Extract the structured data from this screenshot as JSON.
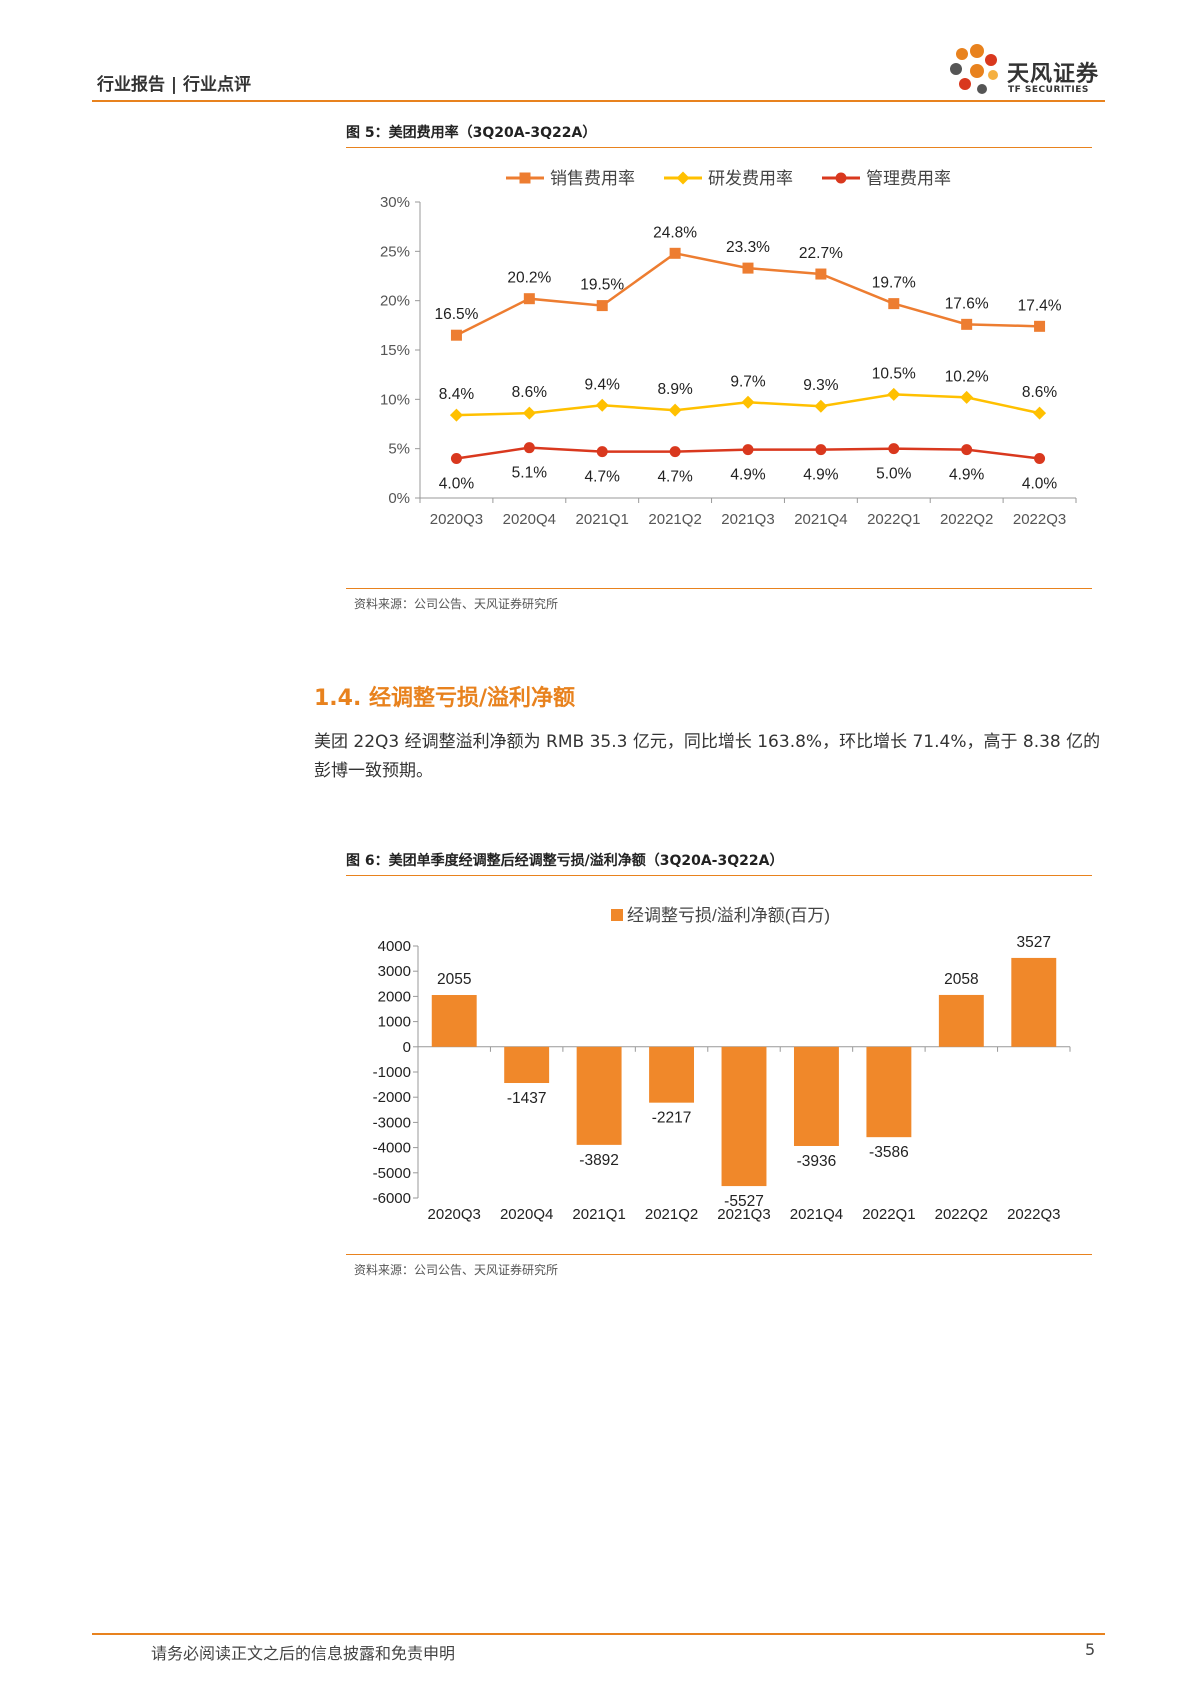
{
  "header": {
    "left_text": "行业报告 | 行业点评",
    "brand_name": "天风证券",
    "brand_sub": "TF SECURITIES",
    "logo_icon": "flower-logo-icon"
  },
  "figure5": {
    "title": "图 5：美团费用率（3Q20A-3Q22A）",
    "source": "资料来源：公司公告、天风证券研究所",
    "chart_data": {
      "type": "line",
      "categories": [
        "2020Q3",
        "2020Q4",
        "2021Q1",
        "2021Q2",
        "2021Q3",
        "2021Q4",
        "2022Q1",
        "2022Q2",
        "2022Q3"
      ],
      "series": [
        {
          "name": "销售费用率",
          "marker": "square",
          "color": "#ED7D31",
          "values": [
            16.5,
            20.2,
            19.5,
            24.8,
            23.3,
            22.7,
            19.7,
            17.6,
            17.4
          ],
          "labels": [
            "16.5%",
            "20.2%",
            "19.5%",
            "24.8%",
            "23.3%",
            "22.7%",
            "19.7%",
            "17.6%",
            "17.4%"
          ]
        },
        {
          "name": "研发费用率",
          "marker": "diamond",
          "color": "#FFC000",
          "values": [
            8.4,
            8.6,
            9.4,
            8.9,
            9.7,
            9.3,
            10.5,
            10.2,
            8.6
          ],
          "labels": [
            "8.4%",
            "8.6%",
            "9.4%",
            "8.9%",
            "9.7%",
            "9.3%",
            "10.5%",
            "10.2%",
            "8.6%"
          ]
        },
        {
          "name": "管理费用率",
          "marker": "circle",
          "color": "#D9381E",
          "values": [
            4.0,
            5.1,
            4.7,
            4.7,
            4.9,
            4.9,
            5.0,
            4.9,
            4.0
          ],
          "labels": [
            "4.0%",
            "5.1%",
            "4.7%",
            "4.7%",
            "4.9%",
            "4.9%",
            "5.0%",
            "4.9%",
            "4.0%"
          ]
        }
      ],
      "ylim": [
        0,
        30
      ],
      "yticks": [
        "0%",
        "5%",
        "10%",
        "15%",
        "20%",
        "25%",
        "30%"
      ],
      "legend_position": "top"
    }
  },
  "section": {
    "heading": "1.4. 经调整亏损/溢利净额",
    "paragraph": "美团 22Q3 经调整溢利净额为 RMB 35.3 亿元，同比增长 163.8%，环比增长 71.4%，高于 8.38 亿的彭博一致预期。"
  },
  "figure6": {
    "title": "图 6：美团单季度经调整后经调整亏损/溢利净额（3Q20A-3Q22A）",
    "source": "资料来源：公司公告、天风证券研究所",
    "chart_data": {
      "type": "bar",
      "categories": [
        "2020Q3",
        "2020Q4",
        "2021Q1",
        "2021Q2",
        "2021Q3",
        "2021Q4",
        "2022Q1",
        "2022Q2",
        "2022Q3"
      ],
      "series": [
        {
          "name": "经调整亏损/溢利净额(百万)",
          "color": "#F0882A",
          "values": [
            2055,
            -1437,
            -3892,
            -2217,
            -5527,
            -3936,
            -3586,
            2058,
            3527
          ]
        }
      ],
      "ylim": [
        -6000,
        4000
      ],
      "yticks": [
        "4000",
        "3000",
        "2000",
        "1000",
        "0",
        "-1000",
        "-2000",
        "-3000",
        "-4000",
        "-5000",
        "-6000"
      ],
      "legend_position": "top"
    }
  },
  "footer": {
    "disclaimer": "请务必阅读正文之后的信息披露和免责申明",
    "page_number": "5"
  }
}
